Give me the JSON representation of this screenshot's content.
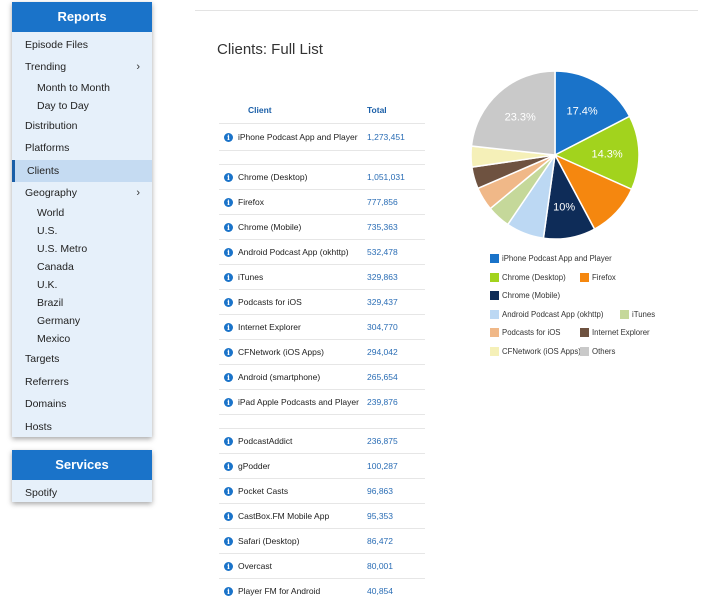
{
  "sidebar": {
    "reports_title": "Reports",
    "items": [
      {
        "label": "Episode Files"
      },
      {
        "label": "Trending",
        "chevron": true
      },
      {
        "label": "Month to Month",
        "sub": true
      },
      {
        "label": "Day to Day",
        "sub": true
      },
      {
        "label": "Distribution"
      },
      {
        "label": "Platforms"
      },
      {
        "label": "Clients",
        "active": true
      },
      {
        "label": "Geography",
        "chevron": true
      },
      {
        "label": "World",
        "sub": true
      },
      {
        "label": "U.S.",
        "sub": true
      },
      {
        "label": "U.S. Metro",
        "sub": true
      },
      {
        "label": "Canada",
        "sub": true
      },
      {
        "label": "U.K.",
        "sub": true
      },
      {
        "label": "Brazil",
        "sub": true
      },
      {
        "label": "Germany",
        "sub": true
      },
      {
        "label": "Mexico",
        "sub": true
      },
      {
        "label": "Targets"
      },
      {
        "label": "Referrers"
      },
      {
        "label": "Domains"
      },
      {
        "label": "Hosts"
      }
    ],
    "services_title": "Services",
    "services_items": [
      {
        "label": "Spotify"
      }
    ],
    "chevron_glyph": "›"
  },
  "main": {
    "title": "Clients: Full List",
    "table": {
      "col_client": "Client",
      "col_total": "Total",
      "info_glyph": "i",
      "groups": [
        [
          {
            "client": "iPhone Podcast App and Player",
            "total": "1,273,451"
          }
        ],
        [
          {
            "client": "Chrome (Desktop)",
            "total": "1,051,031"
          },
          {
            "client": "Firefox",
            "total": "777,856"
          },
          {
            "client": "Chrome (Mobile)",
            "total": "735,363"
          },
          {
            "client": "Android Podcast App (okhttp)",
            "total": "532,478"
          },
          {
            "client": "iTunes",
            "total": "329,863"
          },
          {
            "client": "Podcasts for iOS",
            "total": "329,437"
          },
          {
            "client": "Internet Explorer",
            "total": "304,770"
          },
          {
            "client": "CFNetwork (iOS Apps)",
            "total": "294,042"
          },
          {
            "client": "Android (smartphone)",
            "total": "265,654"
          },
          {
            "client": "iPad Apple Podcasts and Player",
            "total": "239,876"
          }
        ],
        [
          {
            "client": "PodcastAddict",
            "total": "236,875"
          },
          {
            "client": "gPodder",
            "total": "100,287"
          },
          {
            "client": "Pocket Casts",
            "total": "96,863"
          },
          {
            "client": "CastBox.FM Mobile App",
            "total": "95,353"
          },
          {
            "client": "Safari (Desktop)",
            "total": "86,472"
          },
          {
            "client": "Overcast",
            "total": "80,001"
          },
          {
            "client": "Player FM for Android",
            "total": "40,854"
          }
        ]
      ]
    }
  },
  "chart_data": {
    "type": "pie",
    "slices": [
      {
        "label": "iPhone Podcast App and Player",
        "value": 17.4,
        "color": "#1a73c9",
        "text": "17.4%"
      },
      {
        "label": "Chrome (Desktop)",
        "value": 14.3,
        "color": "#a2d31d",
        "text": "14.3%"
      },
      {
        "label": "Firefox",
        "value": 10.5,
        "color": "#f5870f",
        "text": ""
      },
      {
        "label": "Chrome (Mobile)",
        "value": 10,
        "color": "#0e2c58",
        "text": "10%"
      },
      {
        "label": "Android Podcast App (okhttp)",
        "value": 7.3,
        "color": "#bcd8f3",
        "text": ""
      },
      {
        "label": "iTunes",
        "value": 4.5,
        "color": "#c5d89a",
        "text": ""
      },
      {
        "label": "Podcasts for iOS",
        "value": 4.5,
        "color": "#f0b888",
        "text": ""
      },
      {
        "label": "Internet Explorer",
        "value": 4.2,
        "color": "#6e5240",
        "text": ""
      },
      {
        "label": "CFNetwork (iOS Apps)",
        "value": 4,
        "color": "#f5f0b8",
        "text": ""
      },
      {
        "label": "Others",
        "value": 23.3,
        "color": "#c9c9c9",
        "text": "23.3%"
      }
    ],
    "legend_rows": [
      [
        "iPhone Podcast App and Player"
      ],
      [
        "Chrome (Desktop)",
        "Firefox"
      ],
      [
        "Chrome (Mobile)"
      ],
      [
        "Android Podcast App (okhttp)",
        "iTunes"
      ],
      [
        "Podcasts for iOS",
        "Internet Explorer"
      ],
      [
        "CFNetwork (iOS Apps)",
        "Others"
      ]
    ]
  }
}
